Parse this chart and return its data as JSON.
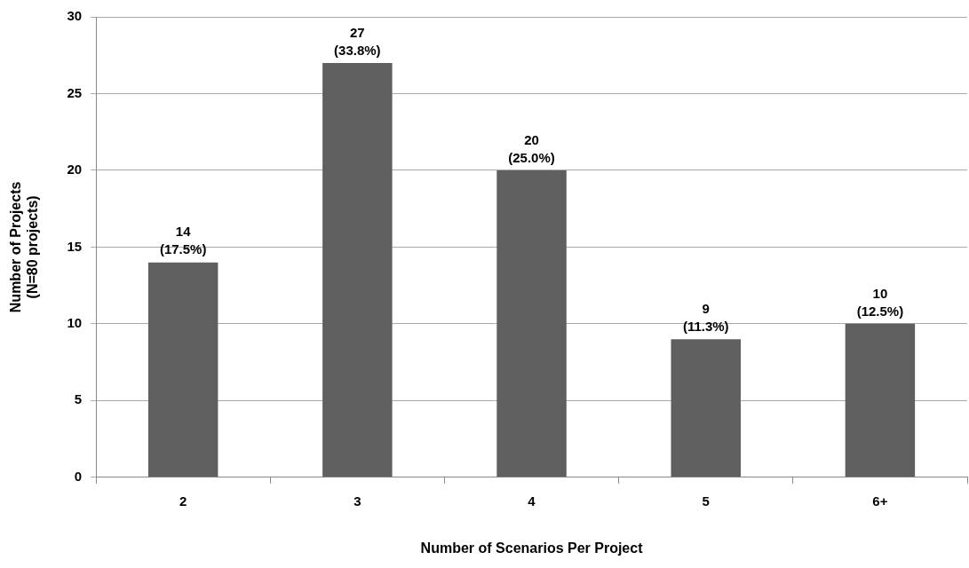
{
  "chart_data": {
    "type": "bar",
    "xlabel": "Number of Scenarios Per Project",
    "ylabel": "Number of Projects\n(N=80 projects)",
    "categories": [
      "2",
      "3",
      "4",
      "5",
      "6+"
    ],
    "values": [
      14,
      27,
      20,
      9,
      10
    ],
    "value_labels": [
      "14\n(17.5%)",
      "27\n(33.8%)",
      "20\n(25.0%)",
      "9\n(11.3%)",
      "10\n(12.5%)"
    ],
    "color": "#5f5f5f",
    "ylim": [
      0,
      30
    ],
    "yticks": [
      0,
      5,
      10,
      15,
      20,
      25,
      30
    ],
    "grid": "y"
  }
}
